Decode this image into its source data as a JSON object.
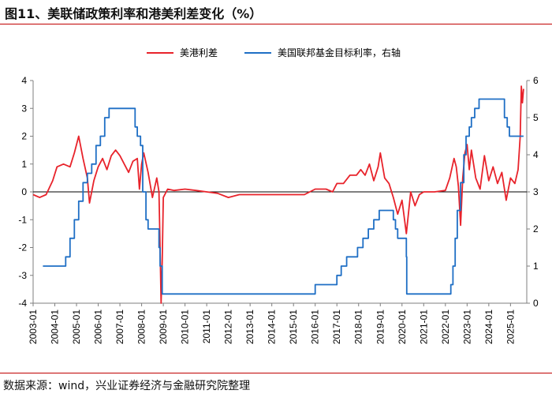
{
  "title": "图11、美联储政策利率和港美利差变化（%）",
  "source": "数据来源：wind，兴业证券经济与金融研究院整理",
  "colors": {
    "spread": "#e8232b",
    "fed": "#1f6fc5",
    "axis": "#7f7f7f",
    "rule": "#c00000"
  },
  "chart_data": {
    "type": "line",
    "legend": [
      "美港利差",
      "美国联邦基金目标利率，右轴"
    ],
    "x_ticks": [
      "2003-01",
      "2004-01",
      "2005-01",
      "2006-01",
      "2007-01",
      "2008-01",
      "2009-01",
      "2010-01",
      "2011-01",
      "2012-01",
      "2013-01",
      "2014-01",
      "2015-01",
      "2016-01",
      "2017-01",
      "2018-01",
      "2019-01",
      "2020-01",
      "2021-01",
      "2022-01",
      "2023-01",
      "2024-01",
      "2025-01"
    ],
    "y_left": {
      "ticks": [
        "4",
        "3",
        "2",
        "1",
        "0",
        "-1",
        "-2",
        "-3",
        "-4"
      ],
      "range": [
        -4,
        4
      ]
    },
    "y_right": {
      "ticks": [
        "6",
        "5",
        "4",
        "3",
        "2",
        "1",
        "0"
      ],
      "range": [
        0,
        6
      ]
    },
    "series": [
      {
        "name": "美港利差",
        "axis": "left",
        "points": [
          [
            2003.0,
            -0.1
          ],
          [
            2003.3,
            -0.2
          ],
          [
            2003.6,
            -0.1
          ],
          [
            2003.9,
            0.4
          ],
          [
            2004.1,
            0.9
          ],
          [
            2004.4,
            1.0
          ],
          [
            2004.7,
            0.9
          ],
          [
            2004.9,
            1.4
          ],
          [
            2005.1,
            2.0
          ],
          [
            2005.3,
            1.2
          ],
          [
            2005.5,
            0.5
          ],
          [
            2005.6,
            -0.4
          ],
          [
            2005.8,
            0.4
          ],
          [
            2006.0,
            0.9
          ],
          [
            2006.2,
            1.2
          ],
          [
            2006.4,
            0.8
          ],
          [
            2006.6,
            1.3
          ],
          [
            2006.8,
            1.5
          ],
          [
            2007.0,
            1.3
          ],
          [
            2007.2,
            1.0
          ],
          [
            2007.4,
            0.7
          ],
          [
            2007.6,
            1.1
          ],
          [
            2007.8,
            1.2
          ],
          [
            2007.9,
            0.1
          ],
          [
            2008.0,
            1.0
          ],
          [
            2008.1,
            1.4
          ],
          [
            2008.3,
            0.7
          ],
          [
            2008.5,
            -0.2
          ],
          [
            2008.7,
            0.5
          ],
          [
            2008.8,
            0.0
          ],
          [
            2008.85,
            -2.0
          ],
          [
            2008.9,
            -4.0
          ],
          [
            2008.95,
            -2.5
          ],
          [
            2009.0,
            -0.2
          ],
          [
            2009.2,
            0.1
          ],
          [
            2009.5,
            0.05
          ],
          [
            2010.0,
            0.1
          ],
          [
            2010.5,
            0.05
          ],
          [
            2011.0,
            0.0
          ],
          [
            2011.5,
            -0.05
          ],
          [
            2012.0,
            -0.2
          ],
          [
            2012.5,
            -0.1
          ],
          [
            2013.0,
            -0.1
          ],
          [
            2014.0,
            -0.1
          ],
          [
            2015.0,
            -0.1
          ],
          [
            2015.5,
            -0.1
          ],
          [
            2016.0,
            0.1
          ],
          [
            2016.5,
            0.1
          ],
          [
            2016.8,
            0.0
          ],
          [
            2017.0,
            0.3
          ],
          [
            2017.3,
            0.3
          ],
          [
            2017.6,
            0.6
          ],
          [
            2017.9,
            0.6
          ],
          [
            2018.1,
            0.8
          ],
          [
            2018.3,
            0.6
          ],
          [
            2018.5,
            1.0
          ],
          [
            2018.7,
            0.4
          ],
          [
            2018.9,
            0.9
          ],
          [
            2019.0,
            1.4
          ],
          [
            2019.2,
            0.5
          ],
          [
            2019.4,
            0.3
          ],
          [
            2019.6,
            -0.2
          ],
          [
            2019.8,
            -0.8
          ],
          [
            2020.0,
            -0.3
          ],
          [
            2020.2,
            -1.5
          ],
          [
            2020.4,
            0.0
          ],
          [
            2020.6,
            -0.5
          ],
          [
            2020.8,
            -0.1
          ],
          [
            2021.0,
            0.0
          ],
          [
            2021.5,
            0.0
          ],
          [
            2022.0,
            0.05
          ],
          [
            2022.2,
            0.5
          ],
          [
            2022.4,
            1.2
          ],
          [
            2022.5,
            0.9
          ],
          [
            2022.6,
            0.2
          ],
          [
            2022.7,
            -1.2
          ],
          [
            2022.8,
            0.5
          ],
          [
            2022.9,
            1.4
          ],
          [
            2023.0,
            1.7
          ],
          [
            2023.1,
            0.8
          ],
          [
            2023.2,
            1.5
          ],
          [
            2023.4,
            0.5
          ],
          [
            2023.6,
            0.1
          ],
          [
            2023.8,
            1.3
          ],
          [
            2024.0,
            0.4
          ],
          [
            2024.2,
            0.9
          ],
          [
            2024.4,
            0.3
          ],
          [
            2024.6,
            0.7
          ],
          [
            2024.8,
            -0.3
          ],
          [
            2025.0,
            0.5
          ],
          [
            2025.2,
            0.3
          ],
          [
            2025.35,
            0.8
          ],
          [
            2025.45,
            2.0
          ],
          [
            2025.5,
            3.8
          ],
          [
            2025.55,
            3.2
          ],
          [
            2025.6,
            3.7
          ]
        ]
      },
      {
        "name": "美国联邦基金目标利率，右轴",
        "axis": "right",
        "points": [
          [
            2003.45,
            1.0
          ],
          [
            2004.45,
            1.0
          ],
          [
            2004.5,
            1.25
          ],
          [
            2004.7,
            1.75
          ],
          [
            2004.9,
            2.25
          ],
          [
            2005.1,
            2.75
          ],
          [
            2005.3,
            3.25
          ],
          [
            2005.5,
            3.5
          ],
          [
            2005.7,
            3.75
          ],
          [
            2005.9,
            4.25
          ],
          [
            2006.1,
            4.5
          ],
          [
            2006.3,
            5.0
          ],
          [
            2006.5,
            5.25
          ],
          [
            2007.6,
            5.25
          ],
          [
            2007.7,
            4.75
          ],
          [
            2007.8,
            4.5
          ],
          [
            2007.95,
            4.25
          ],
          [
            2008.05,
            3.0
          ],
          [
            2008.2,
            2.25
          ],
          [
            2008.3,
            2.0
          ],
          [
            2008.75,
            2.0
          ],
          [
            2008.8,
            1.5
          ],
          [
            2008.85,
            1.0
          ],
          [
            2008.95,
            0.25
          ],
          [
            2015.95,
            0.25
          ],
          [
            2016.0,
            0.5
          ],
          [
            2016.95,
            0.5
          ],
          [
            2017.0,
            0.75
          ],
          [
            2017.2,
            1.0
          ],
          [
            2017.45,
            1.25
          ],
          [
            2017.95,
            1.5
          ],
          [
            2018.2,
            1.75
          ],
          [
            2018.45,
            2.0
          ],
          [
            2018.7,
            2.25
          ],
          [
            2018.95,
            2.5
          ],
          [
            2019.55,
            2.5
          ],
          [
            2019.6,
            2.25
          ],
          [
            2019.7,
            2.0
          ],
          [
            2019.8,
            1.75
          ],
          [
            2020.15,
            1.75
          ],
          [
            2020.2,
            1.25
          ],
          [
            2020.22,
            0.25
          ],
          [
            2022.2,
            0.25
          ],
          [
            2022.25,
            0.5
          ],
          [
            2022.35,
            1.0
          ],
          [
            2022.45,
            1.75
          ],
          [
            2022.55,
            2.5
          ],
          [
            2022.7,
            3.25
          ],
          [
            2022.85,
            4.0
          ],
          [
            2022.95,
            4.5
          ],
          [
            2023.1,
            4.75
          ],
          [
            2023.2,
            5.0
          ],
          [
            2023.35,
            5.25
          ],
          [
            2023.55,
            5.5
          ],
          [
            2024.7,
            5.5
          ],
          [
            2024.72,
            5.0
          ],
          [
            2024.85,
            4.75
          ],
          [
            2024.95,
            4.5
          ],
          [
            2025.6,
            4.5
          ]
        ]
      }
    ]
  }
}
